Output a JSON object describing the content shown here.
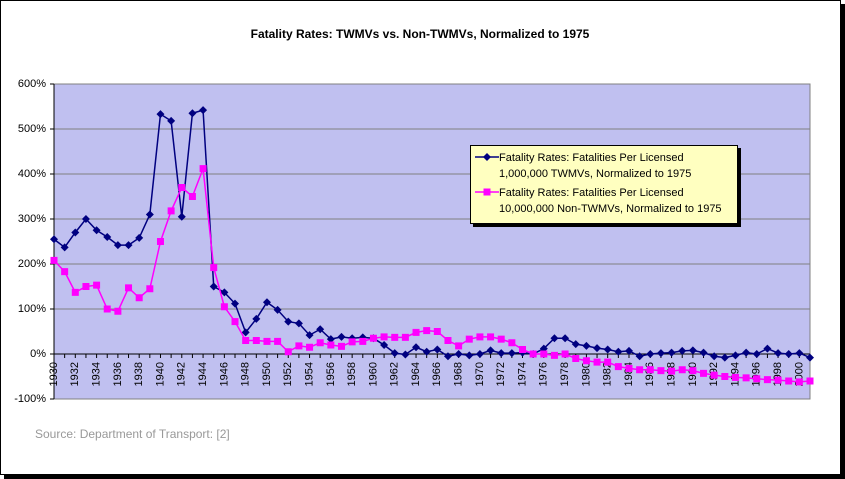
{
  "chart_data": {
    "type": "line",
    "title": "Fatality Rates: TWMVs vs. Non-TWMVs, Normalized to 1975",
    "source": "Source: Department of Transport: [2]",
    "categories": [
      1930,
      null,
      1932,
      null,
      1934,
      null,
      1936,
      null,
      1938,
      null,
      1940,
      null,
      1942,
      null,
      1944,
      null,
      1946,
      null,
      1948,
      null,
      1950,
      null,
      1952,
      null,
      1954,
      null,
      1956,
      null,
      1958,
      null,
      1960,
      null,
      1962,
      null,
      1964,
      null,
      1966,
      null,
      1968,
      null,
      1970,
      null,
      1972,
      null,
      1974,
      null,
      1976,
      null,
      1978,
      null,
      1980,
      null,
      1982,
      null,
      1984,
      null,
      1986,
      null,
      1988,
      null,
      1990,
      null,
      1992,
      null,
      1994,
      null,
      1996,
      null,
      1998,
      null,
      2000,
      null
    ],
    "series": [
      {
        "name": "Fatality Rates: Fatalities Per Licensed 1,000,000 TWMVs, Normalized to 1975",
        "color": "#000080",
        "marker": "diamond",
        "values": [
          255,
          237,
          270,
          300,
          275,
          260,
          242,
          242,
          258,
          310,
          533,
          518,
          305,
          535,
          542,
          150,
          137,
          112,
          48,
          78,
          115,
          98,
          72,
          68,
          42,
          55,
          33,
          38,
          35,
          37,
          35,
          20,
          2,
          -1,
          15,
          5,
          10,
          -5,
          0,
          -3,
          0,
          8,
          2,
          2,
          3,
          0,
          12,
          35,
          35,
          22,
          18,
          13,
          10,
          5,
          7,
          -5,
          0,
          2,
          3,
          7,
          8,
          3,
          -5,
          -8,
          -3,
          3,
          0,
          12,
          2,
          0,
          2,
          -8
        ]
      },
      {
        "name": "Fatality Rates: Fatalities Per Licensed 10,000,000 Non-TWMVs, Normalized to 1975",
        "color": "#ff00ff",
        "marker": "square",
        "values": [
          208,
          183,
          137,
          150,
          153,
          100,
          95,
          147,
          125,
          145,
          250,
          318,
          370,
          350,
          412,
          192,
          105,
          72,
          30,
          30,
          28,
          28,
          5,
          18,
          15,
          25,
          20,
          17,
          27,
          28,
          35,
          38,
          37,
          37,
          48,
          52,
          50,
          30,
          18,
          33,
          38,
          38,
          33,
          25,
          10,
          0,
          0,
          -3,
          0,
          -10,
          -15,
          -18,
          -18,
          -28,
          -32,
          -35,
          -35,
          -37,
          -38,
          -35,
          -37,
          -43,
          -47,
          -50,
          -52,
          -53,
          -55,
          -57,
          -58,
          -60,
          -62,
          -60
        ]
      }
    ],
    "ylim": [
      -100,
      600
    ],
    "yticks": [
      {
        "value": -100,
        "label": "-100%"
      },
      {
        "value": 0,
        "label": "0%"
      },
      {
        "value": 100,
        "label": "100%"
      },
      {
        "value": 200,
        "label": "200%"
      },
      {
        "value": 300,
        "label": "300%"
      },
      {
        "value": 400,
        "label": "400%"
      },
      {
        "value": 500,
        "label": "500%"
      },
      {
        "value": 600,
        "label": "600%"
      }
    ],
    "grid": true,
    "plot_background": "#c0c0f0",
    "legend_position": "right"
  }
}
